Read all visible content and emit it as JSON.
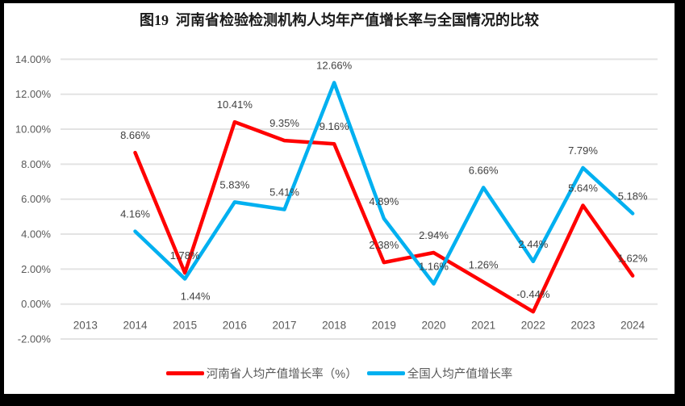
{
  "title": "图19  河南省检验检测机构人均年产值增长率与全国情况的比较",
  "colors": {
    "henan": "#FF0000",
    "national": "#00B0F0",
    "gridline": "#E3E3E3",
    "label_text": "#404040",
    "axis_text": "#595959",
    "frame": "#000000"
  },
  "chart_data": {
    "type": "line",
    "title": "图19  河南省检验检测机构人均年产值增长率与全国情况的比较",
    "x": [
      2013,
      2014,
      2015,
      2016,
      2017,
      2018,
      2019,
      2020,
      2021,
      2022,
      2023,
      2024
    ],
    "series": [
      {
        "name": "河南省人均产值增长率（%）",
        "color": "#FF0000",
        "x": [
          2014,
          2015,
          2016,
          2017,
          2018,
          2019,
          2020,
          2021,
          2022,
          2023,
          2024
        ],
        "values": [
          8.66,
          1.78,
          10.41,
          9.35,
          9.16,
          2.38,
          2.94,
          1.26,
          -0.44,
          5.64,
          1.62
        ],
        "labels": [
          "8.66%",
          "1.78%",
          "10.41%",
          "9.35%",
          "9.16%",
          "2.38%",
          "2.94%",
          "1.26%",
          "-0.44%",
          "5.64%",
          "1.62%"
        ]
      },
      {
        "name": "全国人均产值增长率",
        "color": "#00B0F0",
        "x": [
          2014,
          2015,
          2016,
          2017,
          2018,
          2019,
          2020,
          2021,
          2022,
          2023,
          2024
        ],
        "values": [
          4.16,
          1.44,
          5.83,
          5.41,
          12.66,
          4.89,
          1.16,
          6.66,
          2.44,
          7.79,
          5.18
        ],
        "labels": [
          "4.16%",
          "1.44%",
          "5.83%",
          "5.41%",
          "12.66%",
          "4.89%",
          "1.16%",
          "6.66%",
          "2.44%",
          "7.79%",
          "5.18%"
        ]
      }
    ],
    "yticks": [
      {
        "value": 14,
        "label": "14.00%"
      },
      {
        "value": 12,
        "label": "12.00%"
      },
      {
        "value": 10,
        "label": "10.00%"
      },
      {
        "value": 8,
        "label": "8.00%"
      },
      {
        "value": 6,
        "label": "6.00%"
      },
      {
        "value": 4,
        "label": "4.00%"
      },
      {
        "value": 2,
        "label": "2.00%"
      },
      {
        "value": 0,
        "label": "0.00%"
      },
      {
        "value": -2,
        "label": "-2.00%"
      }
    ],
    "xlabel": "",
    "ylabel": "",
    "ylim": [
      -2,
      14
    ],
    "grid": true,
    "legend_position": "bottom"
  }
}
